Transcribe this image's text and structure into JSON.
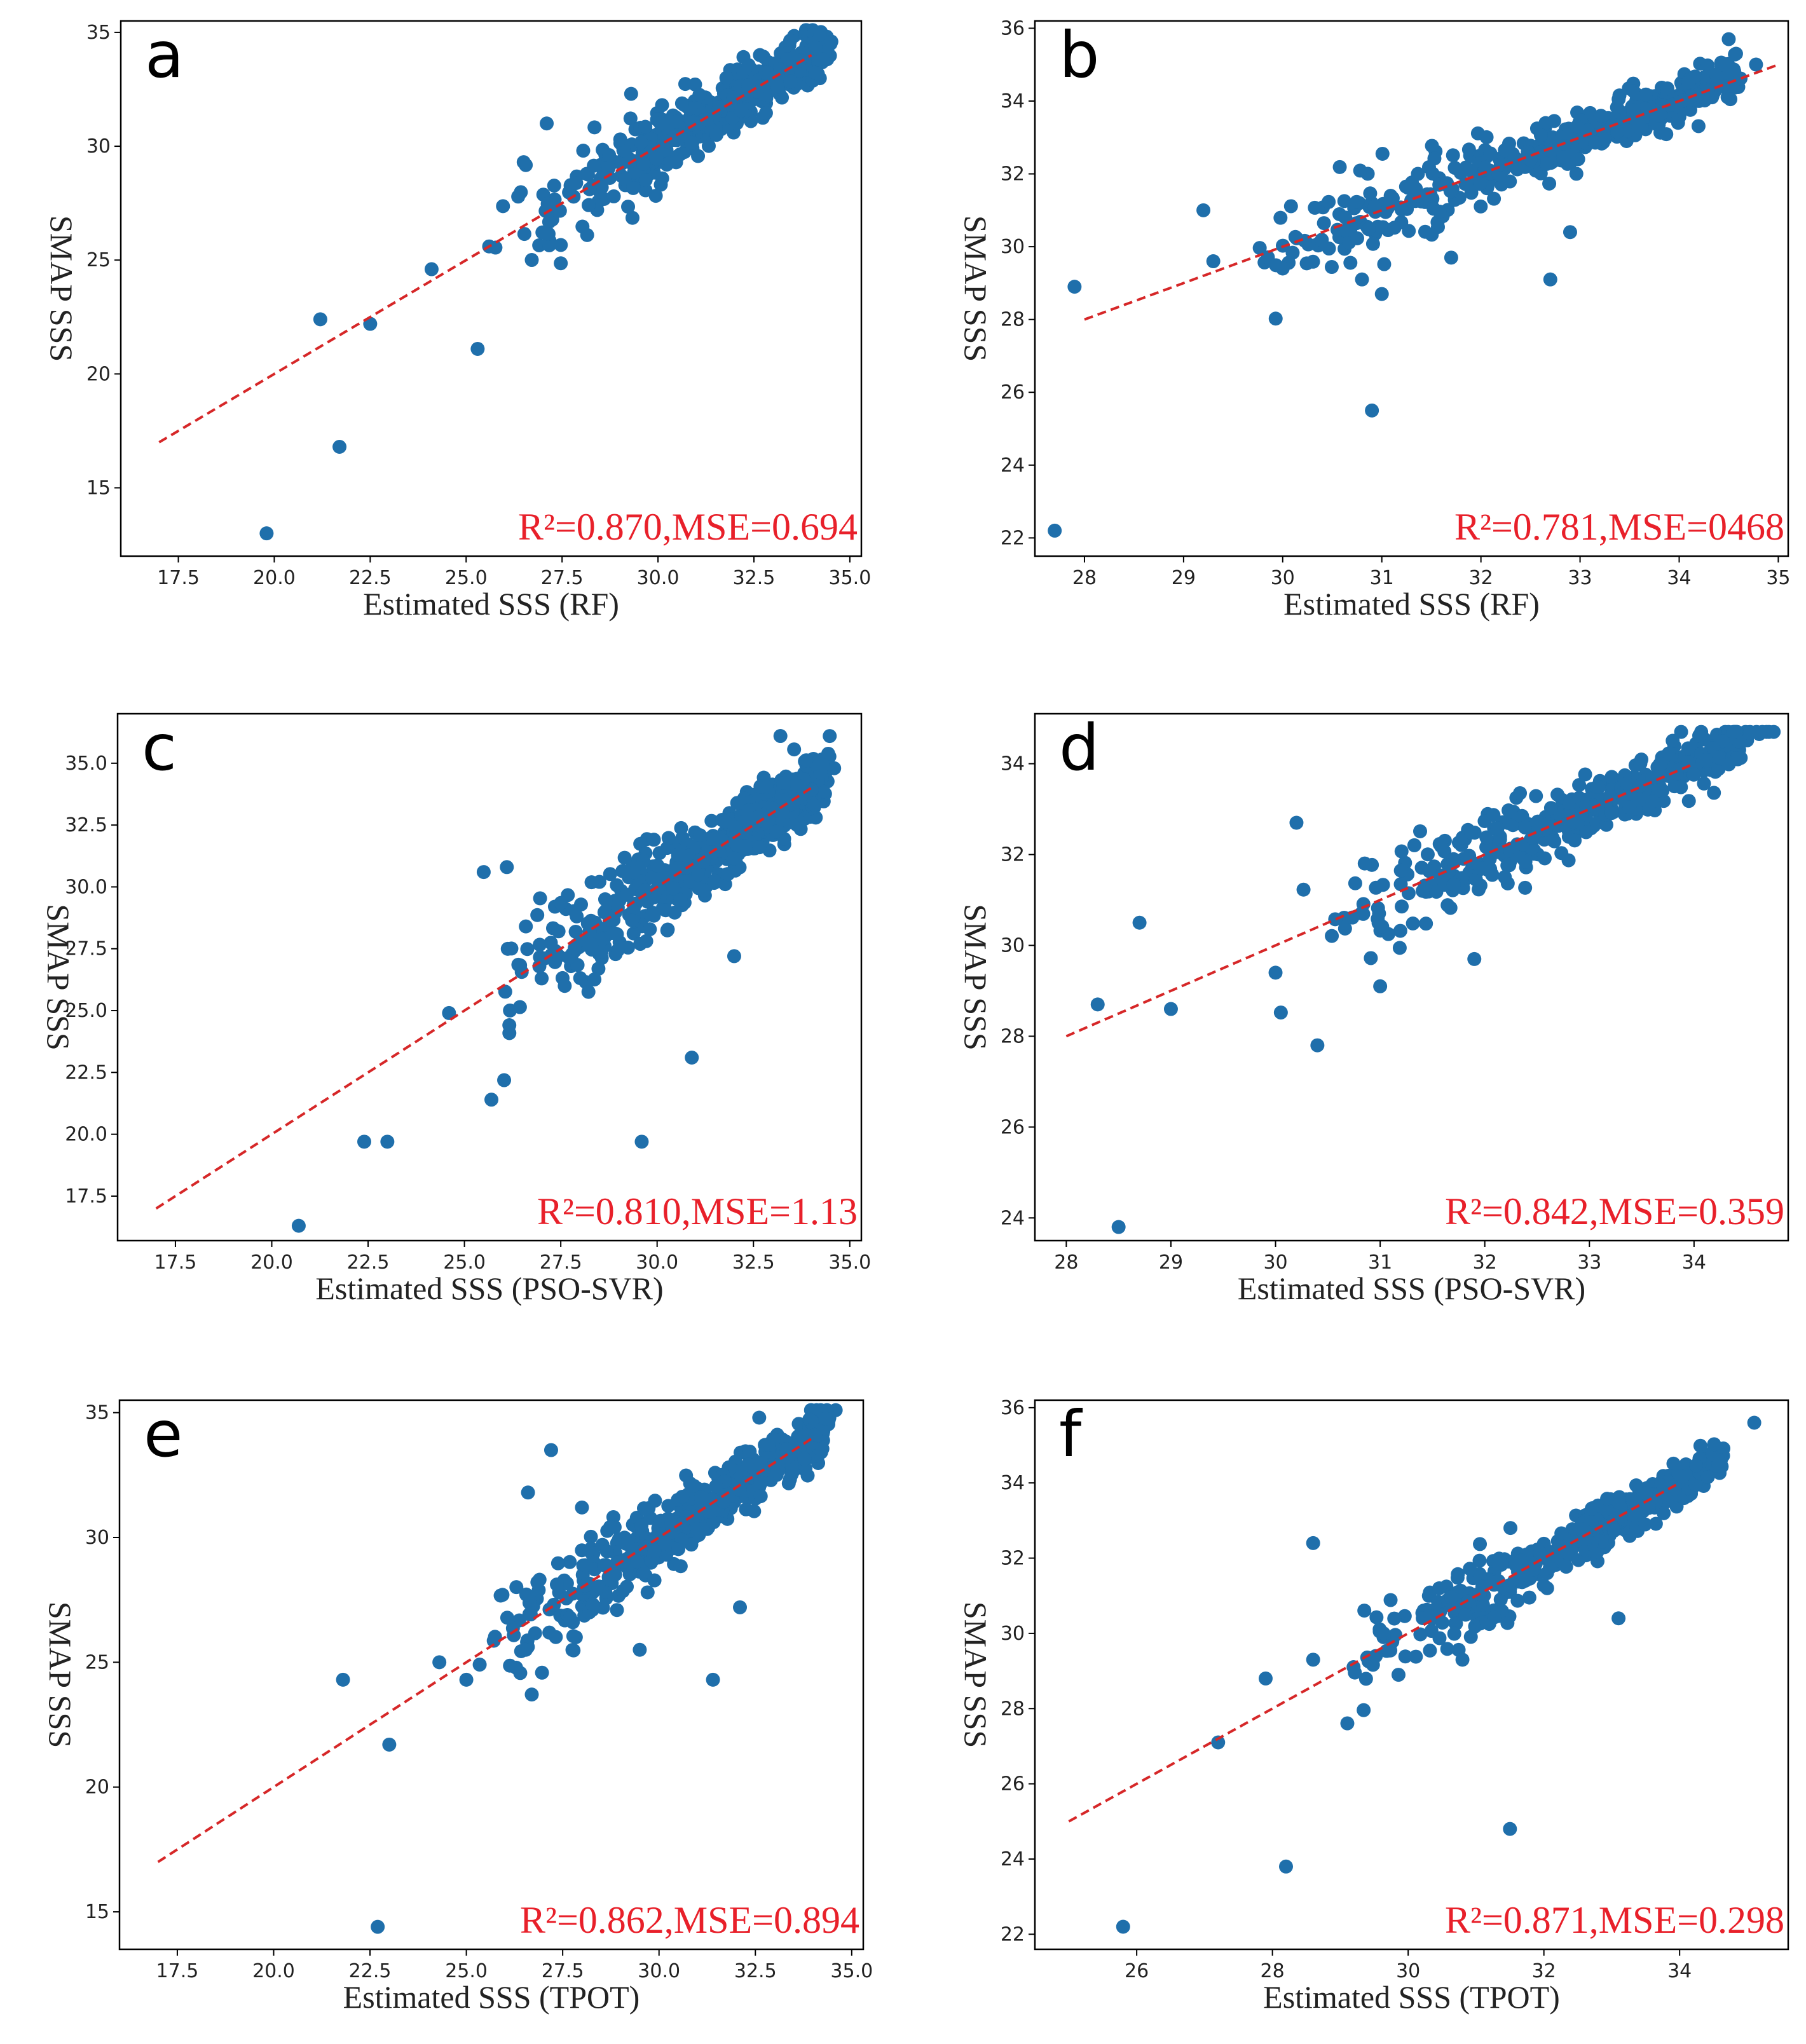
{
  "figure": {
    "colors": {
      "point": "#1f6fab",
      "fit_line": "#d62728",
      "stat_text": "#e8202a",
      "axis": "#000000"
    }
  },
  "chart_data": [
    {
      "panel": "a",
      "type": "scatter",
      "xlabel": "Estimated SSS (RF)",
      "ylabel": "SMAP SSS",
      "xlim": [
        16.0,
        35.3
      ],
      "ylim": [
        12.0,
        35.5
      ],
      "xticks": [
        17.5,
        20.0,
        22.5,
        25.0,
        27.5,
        30.0,
        32.5,
        35.0
      ],
      "xtick_labels": [
        "17.5",
        "20.0",
        "22.5",
        "25.0",
        "27.5",
        "30.0",
        "32.5",
        "35.0"
      ],
      "yticks": [
        15,
        20,
        25,
        30,
        35
      ],
      "ytick_labels": [
        "15",
        "20",
        "25",
        "30",
        "35"
      ],
      "fit_line": [
        [
          17.0,
          17.0
        ],
        [
          34.0,
          34.0
        ]
      ],
      "stat_text": "R²=0.870,MSE=0.694",
      "outliers": [
        [
          19.8,
          13.0
        ],
        [
          21.2,
          22.4
        ],
        [
          21.7,
          16.8
        ],
        [
          22.5,
          22.2
        ],
        [
          24.1,
          24.6
        ],
        [
          25.3,
          21.1
        ],
        [
          25.6,
          25.6
        ],
        [
          26.5,
          29.3
        ],
        [
          27.1,
          31.0
        ],
        [
          29.3,
          32.3
        ]
      ],
      "cloud": {
        "n": 520,
        "xrange": [
          25.6,
          34.4
        ],
        "spread": 1.0,
        "tail_spread": 2.2,
        "seed": 11
      }
    },
    {
      "panel": "b",
      "type": "scatter",
      "xlabel": "Estimated SSS (RF)",
      "ylabel": "SMAP SSS",
      "xlim": [
        27.5,
        35.1
      ],
      "ylim": [
        21.5,
        36.2
      ],
      "xticks": [
        28,
        29,
        30,
        31,
        32,
        33,
        34,
        35
      ],
      "xtick_labels": [
        "28",
        "29",
        "30",
        "31",
        "32",
        "33",
        "34",
        "35"
      ],
      "yticks": [
        22,
        24,
        26,
        28,
        30,
        32,
        34,
        36
      ],
      "ytick_labels": [
        "22",
        "24",
        "26",
        "28",
        "30",
        "32",
        "34",
        "36"
      ],
      "fit_line": [
        [
          28.0,
          28.0
        ],
        [
          35.0,
          35.0
        ]
      ],
      "stat_text": "R²=0.781,MSE=0468",
      "outliers": [
        [
          27.7,
          22.2
        ],
        [
          27.9,
          28.9
        ],
        [
          29.2,
          31.0
        ],
        [
          29.3,
          29.6
        ],
        [
          30.0,
          29.4
        ],
        [
          30.8,
          29.1
        ],
        [
          30.9,
          25.5
        ],
        [
          31.0,
          28.7
        ],
        [
          31.7,
          29.7
        ],
        [
          32.7,
          29.1
        ],
        [
          32.9,
          30.4
        ],
        [
          34.5,
          35.7
        ]
      ],
      "cloud": {
        "n": 420,
        "xrange": [
          29.6,
          34.6
        ],
        "spread": 0.55,
        "tail_spread": 1.2,
        "seed": 23
      }
    },
    {
      "panel": "c",
      "type": "scatter",
      "xlabel": "Estimated SSS (PSO-SVR)",
      "ylabel": "SMAP SSS",
      "xlim": [
        16.0,
        35.3
      ],
      "ylim": [
        15.7,
        37.0
      ],
      "xticks": [
        17.5,
        20.0,
        22.5,
        25.0,
        27.5,
        30.0,
        32.5,
        35.0
      ],
      "xtick_labels": [
        "17.5",
        "20.0",
        "22.5",
        "25.0",
        "27.5",
        "30.0",
        "32.5",
        "35.0"
      ],
      "yticks": [
        17.5,
        20.0,
        22.5,
        25.0,
        27.5,
        30.0,
        32.5,
        35.0
      ],
      "ytick_labels": [
        "17.5",
        "20.0",
        "22.5",
        "25.0",
        "27.5",
        "30.0",
        "32.5",
        "35.0"
      ],
      "fit_line": [
        [
          17.0,
          17.0
        ],
        [
          34.0,
          34.0
        ]
      ],
      "stat_text": "R²=0.810,MSE=1.13",
      "outliers": [
        [
          20.7,
          16.3
        ],
        [
          22.4,
          19.7
        ],
        [
          23.0,
          19.7
        ],
        [
          24.6,
          24.9
        ],
        [
          25.5,
          30.6
        ],
        [
          25.7,
          21.4
        ],
        [
          26.1,
          30.8
        ],
        [
          29.6,
          19.7
        ],
        [
          30.9,
          23.1
        ],
        [
          32.0,
          27.2
        ],
        [
          33.2,
          36.1
        ]
      ],
      "cloud": {
        "n": 560,
        "xrange": [
          25.5,
          34.4
        ],
        "spread": 1.1,
        "tail_spread": 2.2,
        "seed": 37
      }
    },
    {
      "panel": "d",
      "type": "scatter",
      "xlabel": "Estimated SSS (PSO-SVR)",
      "ylabel": "SMAP SSS",
      "xlim": [
        27.7,
        34.9
      ],
      "ylim": [
        23.5,
        35.1
      ],
      "xticks": [
        28,
        29,
        30,
        31,
        32,
        33,
        34
      ],
      "xtick_labels": [
        "28",
        "29",
        "30",
        "31",
        "32",
        "33",
        "34"
      ],
      "yticks": [
        24,
        26,
        28,
        30,
        32,
        34
      ],
      "ytick_labels": [
        "24",
        "26",
        "28",
        "30",
        "32",
        "34"
      ],
      "fit_line": [
        [
          28.0,
          28.0
        ],
        [
          34.0,
          34.0
        ]
      ],
      "stat_text": "R²=0.842,MSE=0.359",
      "outliers": [
        [
          28.3,
          28.7
        ],
        [
          28.5,
          23.8
        ],
        [
          28.7,
          30.5
        ],
        [
          29.0,
          28.6
        ],
        [
          30.0,
          29.4
        ],
        [
          30.2,
          32.7
        ],
        [
          30.4,
          27.8
        ],
        [
          31.0,
          29.1
        ],
        [
          31.9,
          29.7
        ]
      ],
      "cloud": {
        "n": 420,
        "xrange": [
          30.1,
          34.5
        ],
        "spread": 0.55,
        "tail_spread": 1.2,
        "seed": 53
      }
    },
    {
      "panel": "e",
      "type": "scatter",
      "xlabel": "Estimated SSS (TPOT)",
      "ylabel": "SMAP SSS",
      "xlim": [
        16.0,
        35.3
      ],
      "ylim": [
        13.5,
        35.5
      ],
      "xticks": [
        17.5,
        20.0,
        22.5,
        25.0,
        27.5,
        30.0,
        32.5,
        35.0
      ],
      "xtick_labels": [
        "17.5",
        "20.0",
        "22.5",
        "25.0",
        "27.5",
        "30.0",
        "32.5",
        "35.0"
      ],
      "yticks": [
        15,
        20,
        25,
        30,
        35
      ],
      "ytick_labels": [
        "15",
        "20",
        "25",
        "30",
        "35"
      ],
      "fit_line": [
        [
          17.0,
          17.0
        ],
        [
          34.0,
          34.0
        ]
      ],
      "stat_text": "R²=0.862,MSE=0.894",
      "outliers": [
        [
          21.8,
          24.3
        ],
        [
          22.7,
          14.4
        ],
        [
          23.0,
          21.7
        ],
        [
          24.3,
          25.0
        ],
        [
          25.0,
          24.3
        ],
        [
          26.6,
          31.8
        ],
        [
          27.2,
          33.5
        ],
        [
          28.0,
          31.2
        ],
        [
          29.5,
          25.5
        ],
        [
          31.4,
          24.3
        ],
        [
          32.1,
          27.2
        ],
        [
          32.6,
          34.8
        ]
      ],
      "cloud": {
        "n": 540,
        "xrange": [
          25.4,
          34.4
        ],
        "spread": 0.95,
        "tail_spread": 2.0,
        "seed": 71
      }
    },
    {
      "panel": "f",
      "type": "scatter",
      "xlabel": "Estimated SSS (TPOT)",
      "ylabel": "SMAP SSS",
      "xlim": [
        24.5,
        35.6
      ],
      "ylim": [
        21.6,
        36.2
      ],
      "xticks": [
        26,
        28,
        30,
        32,
        34
      ],
      "xtick_labels": [
        "26",
        "28",
        "30",
        "32",
        "34"
      ],
      "yticks": [
        22,
        24,
        26,
        28,
        30,
        32,
        34,
        36
      ],
      "ytick_labels": [
        "22",
        "24",
        "26",
        "28",
        "30",
        "32",
        "34",
        "36"
      ],
      "fit_line": [
        [
          25.0,
          25.0
        ],
        [
          34.0,
          34.0
        ]
      ],
      "stat_text": "R²=0.871,MSE=0.298",
      "outliers": [
        [
          25.8,
          22.2
        ],
        [
          27.2,
          27.1
        ],
        [
          27.9,
          28.8
        ],
        [
          28.2,
          23.8
        ],
        [
          28.6,
          32.4
        ],
        [
          28.6,
          29.3
        ],
        [
          30.8,
          29.3
        ],
        [
          31.5,
          24.8
        ],
        [
          33.1,
          30.4
        ],
        [
          35.1,
          35.6
        ]
      ],
      "cloud": {
        "n": 460,
        "xrange": [
          29.0,
          34.5
        ],
        "spread": 0.5,
        "tail_spread": 1.1,
        "seed": 89
      }
    }
  ]
}
